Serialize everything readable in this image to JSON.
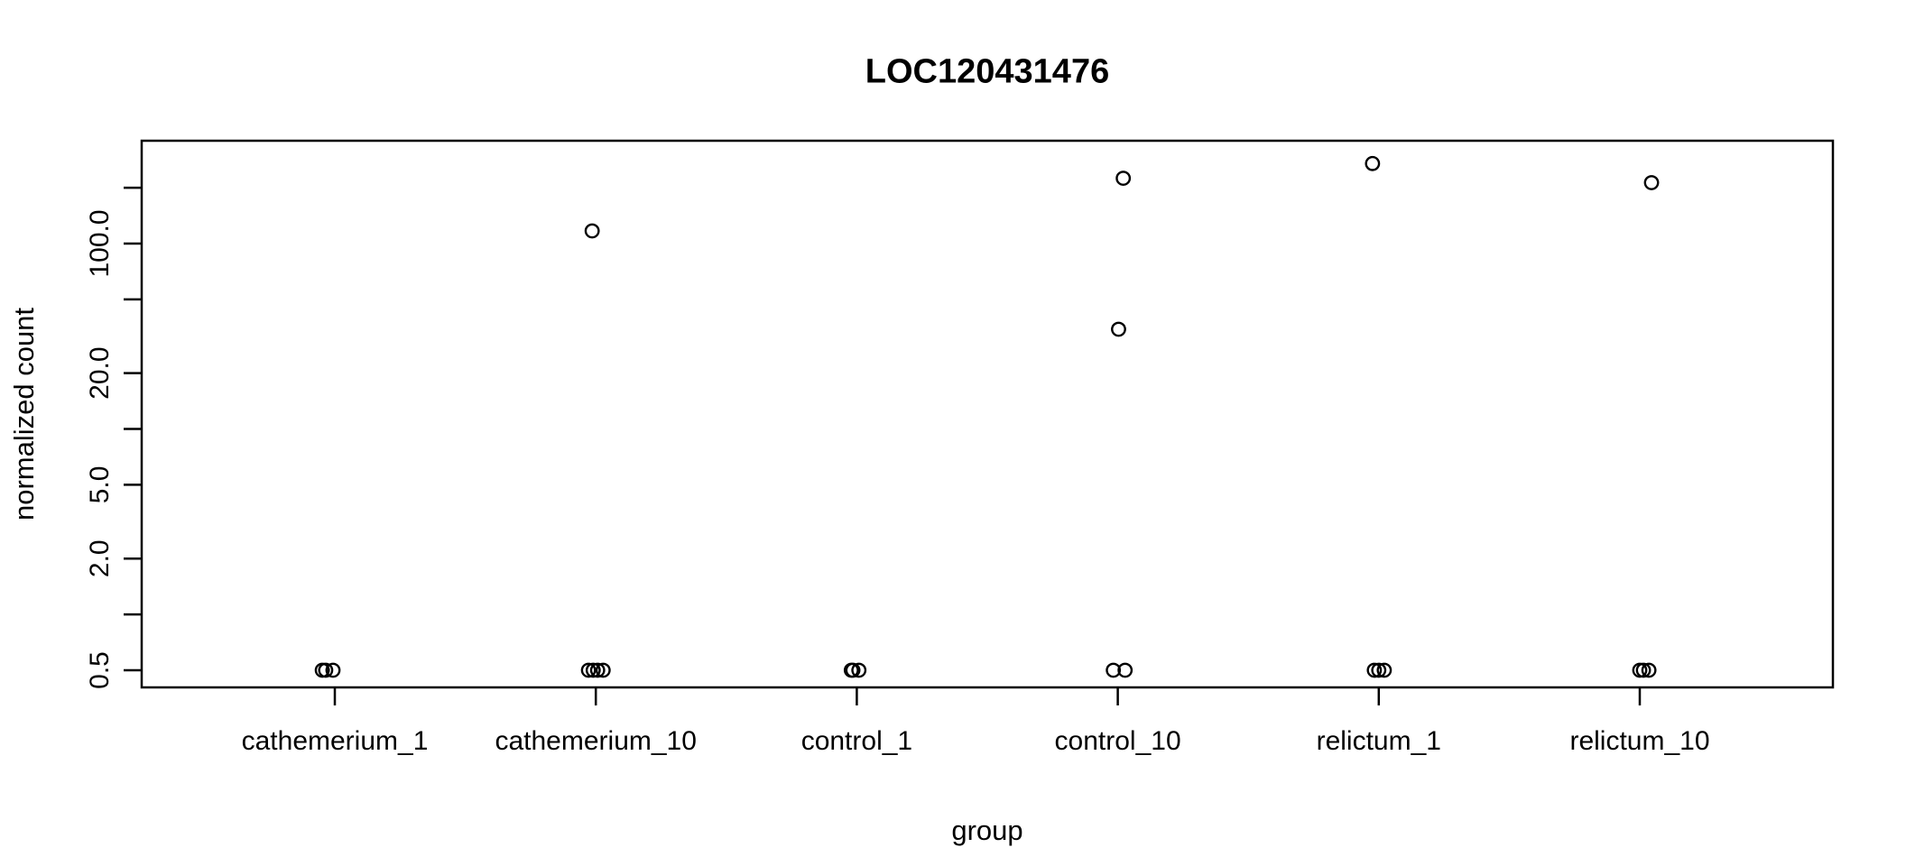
{
  "chart_data": {
    "type": "scatter",
    "title": "LOC120431476",
    "xlabel": "group",
    "ylabel": "normalized count",
    "y_scale": "log10",
    "grid": false,
    "legend": "none",
    "marker": "open-circle",
    "colors": {
      "foreground": "#000000",
      "background": "#ffffff"
    },
    "xlim": [
      0.26,
      6.74
    ],
    "ylim_log10": [
      -0.3935,
      2.5545
    ],
    "categories": [
      "cathemerium_1",
      "cathemerium_10",
      "control_1",
      "control_10",
      "relictum_1",
      "relictum_10"
    ],
    "yticks": [
      {
        "value": 0.5,
        "label": "0.5"
      },
      {
        "value": 1,
        "label": ""
      },
      {
        "value": 2,
        "label": "2.0"
      },
      {
        "value": 5,
        "label": "5.0"
      },
      {
        "value": 10,
        "label": ""
      },
      {
        "value": 20,
        "label": "20.0"
      },
      {
        "value": 50,
        "label": ""
      },
      {
        "value": 100,
        "label": "100.0"
      },
      {
        "value": 200,
        "label": ""
      }
    ],
    "groups": [
      {
        "label": "cathemerium_1",
        "x": 1,
        "points": [
          {
            "value": 0.5,
            "jitter": -0.048
          },
          {
            "value": 0.5,
            "jitter": -0.035
          },
          {
            "value": 0.5,
            "jitter": -0.007
          }
        ]
      },
      {
        "label": "cathemerium_10",
        "x": 2,
        "points": [
          {
            "value": 117,
            "jitter": -0.014
          },
          {
            "value": 0.5,
            "jitter": -0.028
          },
          {
            "value": 0.5,
            "jitter": -0.01
          },
          {
            "value": 0.5,
            "jitter": 0.007
          },
          {
            "value": 0.5,
            "jitter": 0.028
          }
        ]
      },
      {
        "label": "control_1",
        "x": 3,
        "points": [
          {
            "value": 0.5,
            "jitter": -0.021
          },
          {
            "value": 0.5,
            "jitter": -0.015
          },
          {
            "value": 0.5,
            "jitter": 0.008
          }
        ]
      },
      {
        "label": "control_10",
        "x": 4,
        "points": [
          {
            "value": 225,
            "jitter": 0.021
          },
          {
            "value": 34.5,
            "jitter": 0.003
          },
          {
            "value": 0.5,
            "jitter": -0.017
          },
          {
            "value": 0.5,
            "jitter": 0.028
          }
        ]
      },
      {
        "label": "relictum_1",
        "x": 5,
        "points": [
          {
            "value": 270,
            "jitter": -0.024
          },
          {
            "value": 0.5,
            "jitter": -0.017
          },
          {
            "value": 0.5,
            "jitter": 0.0
          },
          {
            "value": 0.5,
            "jitter": 0.021
          }
        ]
      },
      {
        "label": "relictum_10",
        "x": 6,
        "points": [
          {
            "value": 213,
            "jitter": 0.045
          },
          {
            "value": 0.5,
            "jitter": 0.0
          },
          {
            "value": 0.5,
            "jitter": 0.014
          },
          {
            "value": 0.5,
            "jitter": 0.035
          }
        ]
      }
    ]
  }
}
